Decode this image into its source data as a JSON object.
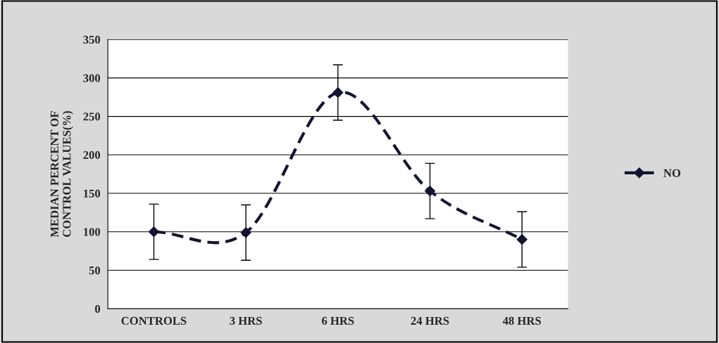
{
  "chart_data": {
    "type": "line",
    "ylabel": "MEDIAN PERCENT OF\nCONTROL VALUES(%)",
    "categories": [
      "CONTROLS",
      "3 HRS",
      "6 HRS",
      "24 HRS",
      "48 HRS"
    ],
    "series": [
      {
        "name": "NO",
        "color": "#141430",
        "values": [
          100,
          99,
          281,
          153,
          90
        ],
        "errors": [
          36,
          36,
          36,
          36,
          36
        ]
      }
    ],
    "ylim": [
      0,
      350
    ],
    "yticks": [
      0,
      50,
      100,
      150,
      200,
      250,
      300,
      350
    ],
    "grid": "y",
    "legend": "right",
    "marker": "diamond",
    "line_style": "dashed"
  }
}
